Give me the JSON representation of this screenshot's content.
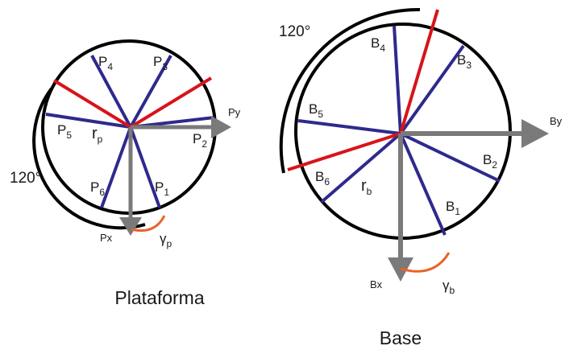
{
  "platform": {
    "caption": "Plataforma",
    "point_labels": [
      {
        "main": "P",
        "sub": "1"
      },
      {
        "main": "P",
        "sub": "2"
      },
      {
        "main": "P",
        "sub": "3"
      },
      {
        "main": "P",
        "sub": "4"
      },
      {
        "main": "P",
        "sub": "5"
      },
      {
        "main": "P",
        "sub": "6"
      }
    ],
    "radius_label": {
      "main": "r",
      "sub": "p"
    },
    "axis_x_label": "Px",
    "axis_y_label": "Py",
    "gamma_label": {
      "main": "γ",
      "sub": "p"
    },
    "arc_angle_label": "120°"
  },
  "base": {
    "caption": "Base",
    "point_labels": [
      {
        "main": "B",
        "sub": "1"
      },
      {
        "main": "B",
        "sub": "2"
      },
      {
        "main": "B",
        "sub": "3"
      },
      {
        "main": "B",
        "sub": "4"
      },
      {
        "main": "B",
        "sub": "5"
      },
      {
        "main": "B",
        "sub": "6"
      }
    ],
    "radius_label": {
      "main": "r",
      "sub": "b"
    },
    "axis_x_label": "Bx",
    "axis_y_label": "By",
    "gamma_label": {
      "main": "γ",
      "sub": "b"
    },
    "arc_angle_label": "120°"
  },
  "colors": {
    "spoke": "#2e2a8c",
    "reference": "#d7141a",
    "axis": "#7a7a7a",
    "gamma_arc": "#e8632a",
    "outline": "#000000"
  }
}
